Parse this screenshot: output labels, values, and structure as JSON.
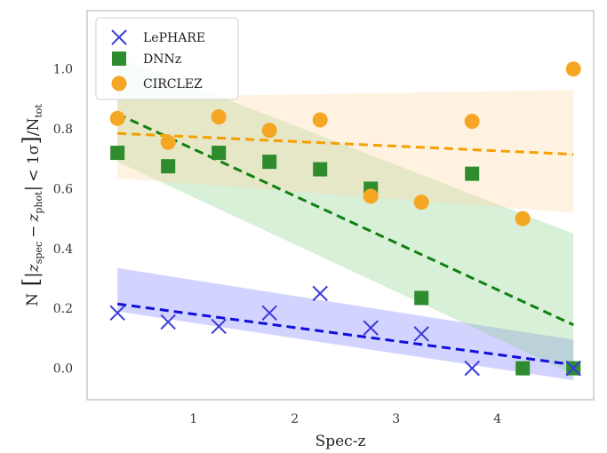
{
  "chart_data": {
    "type": "scatter",
    "title": "",
    "xlabel": "Spec-z",
    "ylabel": "N[|z_spec − z_phot| < 1σ]/N_tot",
    "ylabel_parts": {
      "n": "N",
      "zspec": "z",
      "spec": "spec",
      "minus": "−",
      "zphot": "z",
      "phot": "phot",
      "lt": "< 1σ",
      "ntot": "/N",
      "tot": "tot"
    },
    "xlim": [
      -0.05,
      4.95
    ],
    "ylim": [
      -0.105,
      1.195
    ],
    "xticks": [
      1,
      2,
      3,
      4
    ],
    "yticks": [
      0.0,
      0.2,
      0.4,
      0.6,
      0.8,
      1.0
    ],
    "grid": false,
    "legend_position": "top-left",
    "series": [
      {
        "name": "LePHARE",
        "marker": "x",
        "color": "#3b3bd8",
        "line_color": "#1010d8",
        "band_color": "#8080ff",
        "x": [
          0.25,
          0.75,
          1.25,
          1.75,
          2.25,
          2.75,
          3.25,
          3.75,
          4.25,
          4.75
        ],
        "y": [
          0.185,
          0.155,
          0.14,
          0.185,
          0.25,
          0.135,
          0.115,
          0.0,
          null,
          0.0
        ],
        "fit": {
          "x": [
            0.25,
            4.75
          ],
          "y": [
            0.215,
            0.012
          ]
        },
        "band": {
          "x": [
            0.25,
            4.75
          ],
          "upper": [
            0.335,
            0.095
          ],
          "lower": [
            0.19,
            -0.04
          ]
        }
      },
      {
        "name": "DNNz",
        "marker": "square",
        "color": "#2e8b2e",
        "line_color": "#108010",
        "band_color": "#8fd08f",
        "x": [
          0.25,
          0.75,
          1.25,
          1.75,
          2.25,
          2.75,
          3.25,
          3.75,
          4.25,
          4.75
        ],
        "y": [
          0.72,
          0.675,
          0.72,
          0.69,
          0.665,
          0.6,
          0.235,
          0.65,
          0.0,
          0.0
        ],
        "fit": {
          "x": [
            0.25,
            4.75
          ],
          "y": [
            0.85,
            0.145
          ]
        },
        "band": {
          "x": [
            0.25,
            4.75
          ],
          "upper": [
            1.04,
            0.45
          ],
          "lower": [
            0.69,
            -0.02
          ]
        }
      },
      {
        "name": "CIRCLEZ",
        "marker": "circle",
        "color": "#f5a623",
        "line_color": "#f5a000",
        "band_color": "#ffd9a8",
        "x": [
          0.25,
          0.75,
          1.25,
          1.75,
          2.25,
          2.75,
          3.25,
          3.75,
          4.25,
          4.75
        ],
        "y": [
          0.835,
          0.755,
          0.84,
          0.795,
          0.83,
          0.575,
          0.555,
          0.825,
          0.5,
          1.0
        ],
        "fit": {
          "x": [
            0.25,
            4.75
          ],
          "y": [
            0.785,
            0.715
          ]
        },
        "band": {
          "x": [
            0.25,
            4.75
          ],
          "upper": [
            0.905,
            0.93
          ],
          "lower": [
            0.635,
            0.52
          ]
        }
      }
    ]
  }
}
